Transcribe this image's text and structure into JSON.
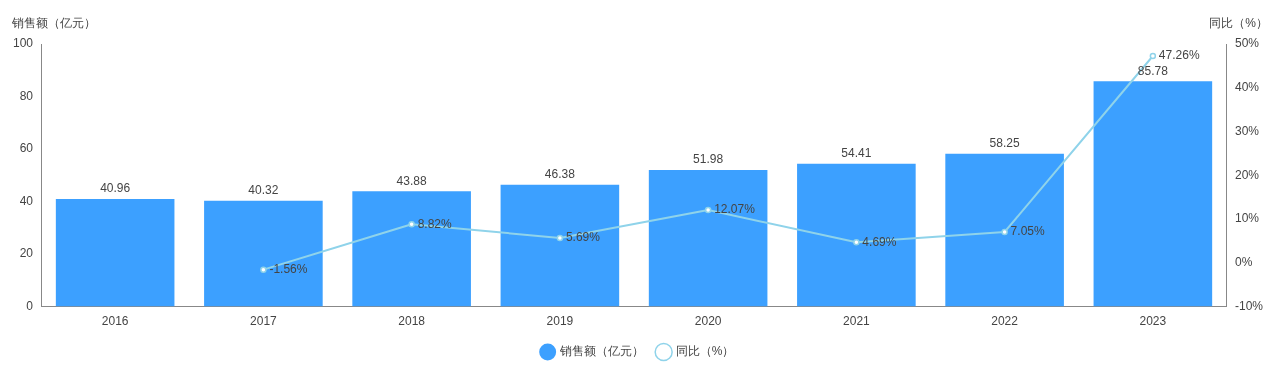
{
  "chart_data": {
    "type": "bar",
    "ylabel": "销售额（亿元）",
    "y2label": "同比（%）",
    "categories": [
      "2016",
      "2017",
      "2018",
      "2019",
      "2020",
      "2021",
      "2022",
      "2023"
    ],
    "series": [
      {
        "name": "销售额（亿元）",
        "color": "#3ca0ff",
        "values": [
          40.96,
          40.32,
          43.88,
          46.38,
          51.98,
          54.41,
          58.25,
          85.78
        ],
        "value_labels": [
          "40.96",
          "40.32",
          "43.88",
          "46.38",
          "51.98",
          "54.41",
          "58.25",
          "85.78"
        ]
      },
      {
        "name": "同比（%）",
        "type": "line",
        "axis": "y2",
        "color": "#8fd3ea",
        "marker": "circle",
        "values": [
          null,
          -1.56,
          8.82,
          5.69,
          12.07,
          4.69,
          7.05,
          47.26
        ],
        "value_labels": [
          null,
          "-1.56%",
          "8.82%",
          "5.69%",
          "12.07%",
          "4.69%",
          "7.05%",
          "47.26%"
        ]
      }
    ],
    "ylim": [
      0,
      100
    ],
    "yticks": [
      0,
      20,
      40,
      60,
      80,
      100
    ],
    "y2lim": [
      -10,
      50
    ],
    "y2ticks": [
      {
        "value": -10,
        "label": "-10%"
      },
      {
        "value": 0,
        "label": "0%"
      },
      {
        "value": 10,
        "label": "10%"
      },
      {
        "value": 20,
        "label": "20%"
      },
      {
        "value": 30,
        "label": "30%"
      },
      {
        "value": 40,
        "label": "40%"
      },
      {
        "value": 50,
        "label": "50%"
      }
    ],
    "grid": false,
    "legend": "bottom"
  }
}
